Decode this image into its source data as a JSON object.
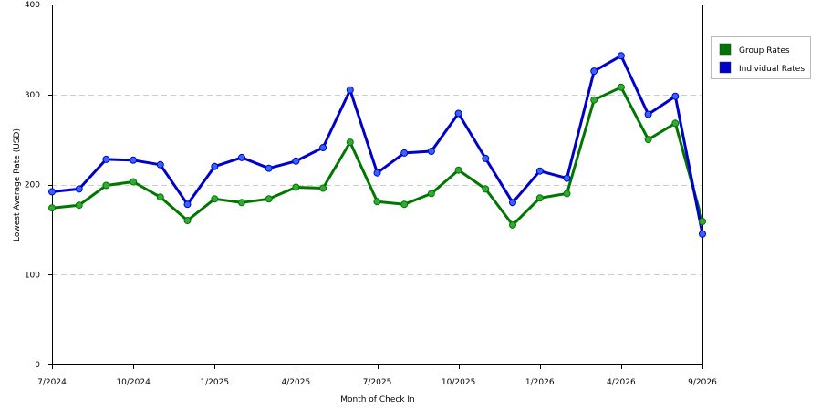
{
  "chart_data": {
    "type": "line",
    "xlabel": "Month of Check In",
    "ylabel": "Lowest Average Rate (USD)",
    "ylim": [
      0,
      400
    ],
    "yticks": [
      "0",
      "100",
      "200",
      "300",
      "400"
    ],
    "x_tick_labels": [
      {
        "label": "7/2024",
        "index": 0
      },
      {
        "label": "10/2024",
        "index": 3
      },
      {
        "label": "1/2025",
        "index": 6
      },
      {
        "label": "4/2025",
        "index": 9
      },
      {
        "label": "7/2025",
        "index": 12
      },
      {
        "label": "10/2025",
        "index": 15
      },
      {
        "label": "1/2026",
        "index": 18
      },
      {
        "label": "4/2026",
        "index": 21
      },
      {
        "label": "9/2026",
        "index": 24
      }
    ],
    "months": [
      "7/2024",
      "8/2024",
      "9/2024",
      "10/2024",
      "11/2024",
      "12/2024",
      "1/2025",
      "2/2025",
      "3/2025",
      "4/2025",
      "5/2025",
      "6/2025",
      "7/2025",
      "8/2025",
      "9/2025",
      "10/2025",
      "11/2025",
      "12/2025",
      "1/2026",
      "2/2026",
      "3/2026",
      "4/2026",
      "5/2026",
      "6/2026",
      "9/2026"
    ],
    "grid": "horizontal dashed",
    "legend_position": "right",
    "series": [
      {
        "name": "Group Rates",
        "color": "#007700",
        "marker_color": "#33aa33",
        "values": [
          174,
          177,
          199,
          203,
          186,
          160,
          184,
          180,
          184,
          197,
          196,
          247,
          181,
          178,
          190,
          216,
          195,
          155,
          185,
          190,
          294,
          308,
          250,
          268,
          159
        ]
      },
      {
        "name": "Individual Rates",
        "color": "#0000cc",
        "marker_color": "#3366ff",
        "values": [
          192,
          195,
          228,
          227,
          222,
          178,
          220,
          230,
          218,
          226,
          241,
          305,
          213,
          235,
          237,
          279,
          229,
          180,
          215,
          207,
          326,
          343,
          278,
          298,
          145
        ]
      }
    ]
  }
}
